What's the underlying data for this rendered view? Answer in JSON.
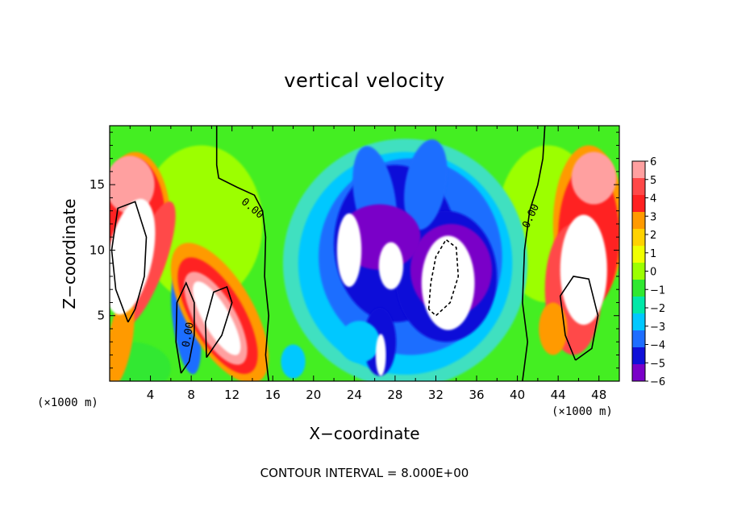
{
  "chart_data": {
    "type": "heatmap",
    "title": "vertical velocity",
    "xlabel": "X−coordinate",
    "ylabel": "Z−coordinate",
    "x_unit_label": "(×1000 m)",
    "xlim": [
      0,
      50
    ],
    "ylim": [
      0,
      19.5
    ],
    "x_ticks": [
      4,
      8,
      12,
      16,
      20,
      24,
      28,
      32,
      36,
      40,
      44,
      48
    ],
    "y_ticks": [
      5,
      10,
      15
    ],
    "colorbar": {
      "ticks": [
        "6",
        "5",
        "4",
        "3",
        "2",
        "1",
        "0",
        "−1",
        "−2",
        "−3",
        "−4",
        "−5",
        "−6"
      ],
      "range": [
        -6,
        6
      ],
      "colors": [
        "#ffa0a0",
        "#ff4848",
        "#ff2020",
        "#ff9a00",
        "#ffd200",
        "#f0ff00",
        "#9cff00",
        "#30e830",
        "#00e8a8",
        "#00c8ff",
        "#1e6eff",
        "#1010d8",
        "#7a00c8"
      ]
    },
    "contour_labels": [
      "0.00",
      "0.00",
      "0.00"
    ],
    "contour_interval_text": "CONTOUR INTERVAL = 8.000E+00",
    "features": [
      {
        "kind": "updraft",
        "x": 3,
        "z": 10,
        "w": 8
      },
      {
        "kind": "updraft",
        "x": 10.5,
        "z": 5,
        "w": 7
      },
      {
        "kind": "updraft",
        "x": 46,
        "z": 8,
        "w": 8
      },
      {
        "kind": "downdraft",
        "x": 23.5,
        "z": 10,
        "w": -8
      },
      {
        "kind": "downdraft",
        "x": 27.5,
        "z": 10,
        "w": -7
      },
      {
        "kind": "downdraft",
        "x": 33,
        "z": 7.5,
        "w": -9
      },
      {
        "kind": "downdraft",
        "x": 26.5,
        "z": 2.5,
        "w": -6
      },
      {
        "kind": "downdraft",
        "x": 7.5,
        "z": 5,
        "w": -4
      }
    ]
  }
}
